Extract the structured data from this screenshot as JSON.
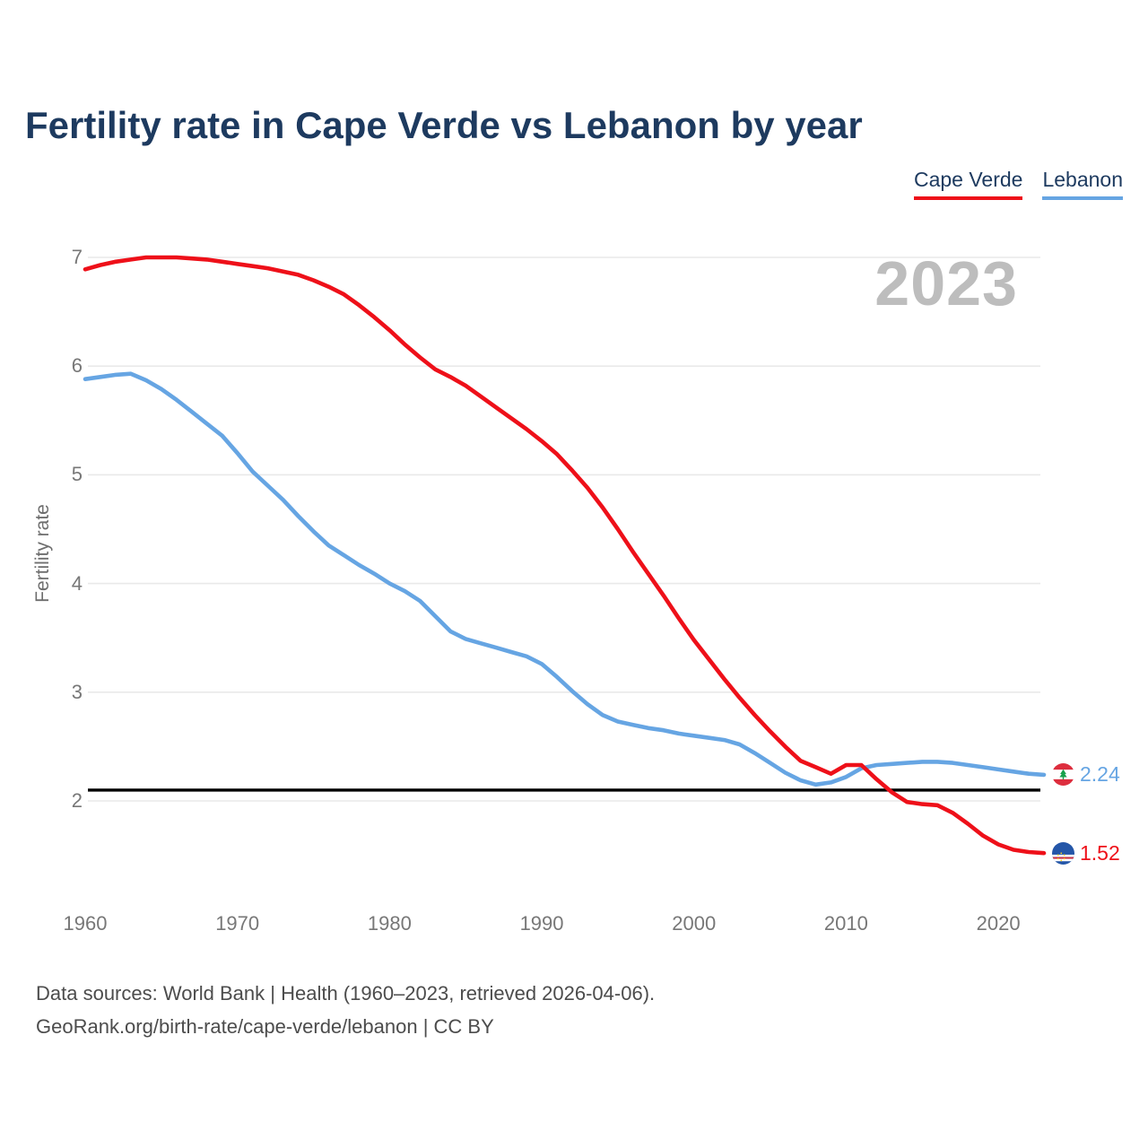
{
  "title": "Fertility rate in Cape Verde vs Lebanon by year",
  "watermark": "2023",
  "legend": {
    "items": [
      {
        "label": "Cape Verde",
        "color": "#ee1019"
      },
      {
        "label": "Lebanon",
        "color": "#66a5e3"
      }
    ]
  },
  "y_axis": {
    "label": "Fertility rate",
    "ticks": [
      7,
      6,
      5,
      4,
      3,
      2
    ]
  },
  "x_axis": {
    "ticks": [
      1960,
      1970,
      1980,
      1990,
      2000,
      2010,
      2020
    ]
  },
  "end_labels": [
    {
      "series": "Lebanon",
      "value": "2.24",
      "flag_icon": "lebanon-flag-icon",
      "color": "#66a5e3"
    },
    {
      "series": "Cape Verde",
      "value": "1.52",
      "flag_icon": "cape-verde-flag-icon",
      "color": "#ee1019"
    }
  ],
  "footer": {
    "line1": "Data sources: World Bank | Health (1960–2023, retrieved 2026-04-06).",
    "line2": "GeoRank.org/birth-rate/cape-verde/lebanon | CC BY"
  },
  "chart_data": {
    "type": "line",
    "title": "Fertility rate in Cape Verde vs Lebanon by year",
    "xlabel": "",
    "ylabel": "Fertility rate",
    "xlim": [
      1960,
      2023
    ],
    "ylim": [
      1.3,
      7.35
    ],
    "grid": "horizontal",
    "legend_position": "top-right",
    "reference_line": {
      "value": 2.1,
      "color": "#000000",
      "name": "replacement-level-line"
    },
    "x": [
      1960,
      1961,
      1962,
      1963,
      1964,
      1965,
      1966,
      1967,
      1968,
      1969,
      1970,
      1971,
      1972,
      1973,
      1974,
      1975,
      1976,
      1977,
      1978,
      1979,
      1980,
      1981,
      1982,
      1983,
      1984,
      1985,
      1986,
      1987,
      1988,
      1989,
      1990,
      1991,
      1992,
      1993,
      1994,
      1995,
      1996,
      1997,
      1998,
      1999,
      2000,
      2001,
      2002,
      2003,
      2004,
      2005,
      2006,
      2007,
      2008,
      2009,
      2010,
      2011,
      2012,
      2013,
      2014,
      2015,
      2016,
      2017,
      2018,
      2019,
      2020,
      2021,
      2022,
      2023
    ],
    "series": [
      {
        "name": "Cape Verde",
        "color": "#ee1019",
        "final_value": 1.52,
        "values": [
          6.89,
          6.93,
          6.96,
          6.98,
          7.0,
          7.0,
          7.0,
          6.99,
          6.98,
          6.96,
          6.94,
          6.92,
          6.9,
          6.87,
          6.84,
          6.79,
          6.73,
          6.66,
          6.56,
          6.45,
          6.33,
          6.2,
          6.08,
          5.97,
          5.9,
          5.82,
          5.72,
          5.62,
          5.52,
          5.42,
          5.31,
          5.19,
          5.04,
          4.88,
          4.7,
          4.5,
          4.29,
          4.09,
          3.89,
          3.68,
          3.48,
          3.3,
          3.12,
          2.95,
          2.79,
          2.64,
          2.5,
          2.37,
          2.31,
          2.25,
          2.33,
          2.33,
          2.2,
          2.08,
          1.99,
          1.97,
          1.96,
          1.89,
          1.79,
          1.68,
          1.6,
          1.55,
          1.53,
          1.52
        ]
      },
      {
        "name": "Lebanon",
        "color": "#66a5e3",
        "final_value": 2.24,
        "values": [
          5.88,
          5.9,
          5.92,
          5.93,
          5.87,
          5.79,
          5.69,
          5.58,
          5.47,
          5.36,
          5.2,
          5.03,
          4.9,
          4.77,
          4.62,
          4.48,
          4.35,
          4.26,
          4.17,
          4.09,
          4.0,
          3.93,
          3.84,
          3.7,
          3.56,
          3.49,
          3.45,
          3.41,
          3.37,
          3.33,
          3.26,
          3.14,
          3.01,
          2.89,
          2.79,
          2.73,
          2.7,
          2.67,
          2.65,
          2.62,
          2.6,
          2.58,
          2.56,
          2.52,
          2.44,
          2.35,
          2.26,
          2.19,
          2.15,
          2.17,
          2.22,
          2.3,
          2.33,
          2.34,
          2.35,
          2.36,
          2.36,
          2.35,
          2.33,
          2.31,
          2.29,
          2.27,
          2.25,
          2.24
        ]
      }
    ]
  }
}
